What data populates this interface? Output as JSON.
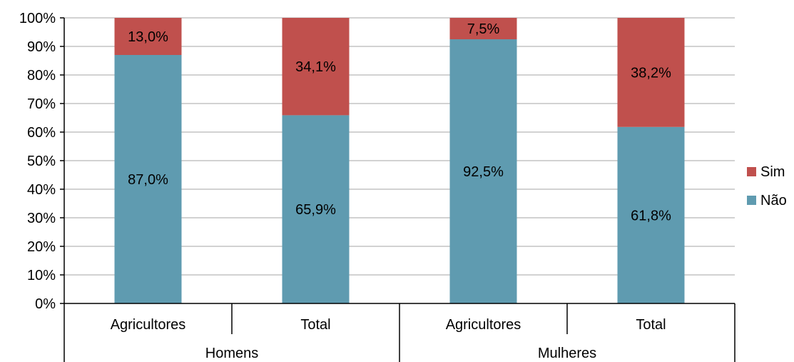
{
  "chart_data": {
    "type": "bar",
    "stacked": "percent",
    "categories": [
      "Agricultores",
      "Total",
      "Agricultores",
      "Total"
    ],
    "groups": [
      {
        "label": "Homens",
        "categories": [
          0,
          1
        ]
      },
      {
        "label": "Mulheres",
        "categories": [
          2,
          3
        ]
      }
    ],
    "series": [
      {
        "name": "Não",
        "values": [
          87.0,
          65.9,
          92.5,
          61.8
        ],
        "labels": [
          "87,0%",
          "65,9%",
          "92,5%",
          "61,8%"
        ],
        "color": "#5f9bb0"
      },
      {
        "name": "Sim",
        "values": [
          13.0,
          34.1,
          7.5,
          38.2
        ],
        "labels": [
          "13,0%",
          "34,1%",
          "7,5%",
          "38,2%"
        ],
        "color": "#c0504d"
      }
    ],
    "yticks": [
      "0%",
      "10%",
      "20%",
      "30%",
      "40%",
      "50%",
      "60%",
      "70%",
      "80%",
      "90%",
      "100%"
    ],
    "ylim": [
      0,
      100
    ],
    "grid": true,
    "legend": {
      "position": "right",
      "entries": [
        "Sim",
        "Não"
      ]
    }
  }
}
